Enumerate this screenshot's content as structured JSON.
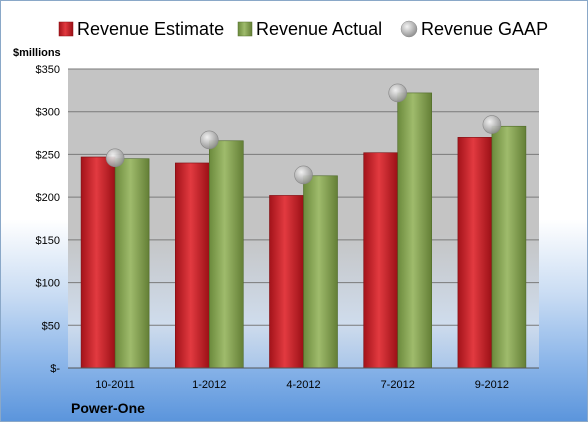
{
  "chart_data": {
    "type": "bar",
    "categories": [
      "10-2011",
      "1-2012",
      "4-2012",
      "7-2012",
      "9-2012"
    ],
    "series": [
      {
        "name": "Revenue Estimate",
        "kind": "bar",
        "color": "#cc1f26",
        "values": [
          247,
          240,
          202,
          252,
          270
        ]
      },
      {
        "name": "Revenue Actual",
        "kind": "bar",
        "color": "#8aa45a",
        "values": [
          245,
          266,
          225,
          322,
          283
        ]
      },
      {
        "name": "Revenue GAAP",
        "kind": "marker",
        "color": "#b8b8b8",
        "values": [
          246,
          267,
          226,
          322,
          285
        ]
      }
    ],
    "ylabel": "$millions",
    "ylim": [
      0,
      350
    ],
    "yticks": [
      {
        "value": 0,
        "label": "$-"
      },
      {
        "value": 50,
        "label": "$50"
      },
      {
        "value": 100,
        "label": "$100"
      },
      {
        "value": 150,
        "label": "$150"
      },
      {
        "value": 200,
        "label": "$200"
      },
      {
        "value": 250,
        "label": "$250"
      },
      {
        "value": 300,
        "label": "$300"
      },
      {
        "value": 350,
        "label": "$350"
      }
    ],
    "grid": true,
    "legend_position": "top",
    "company": "Power-One"
  }
}
